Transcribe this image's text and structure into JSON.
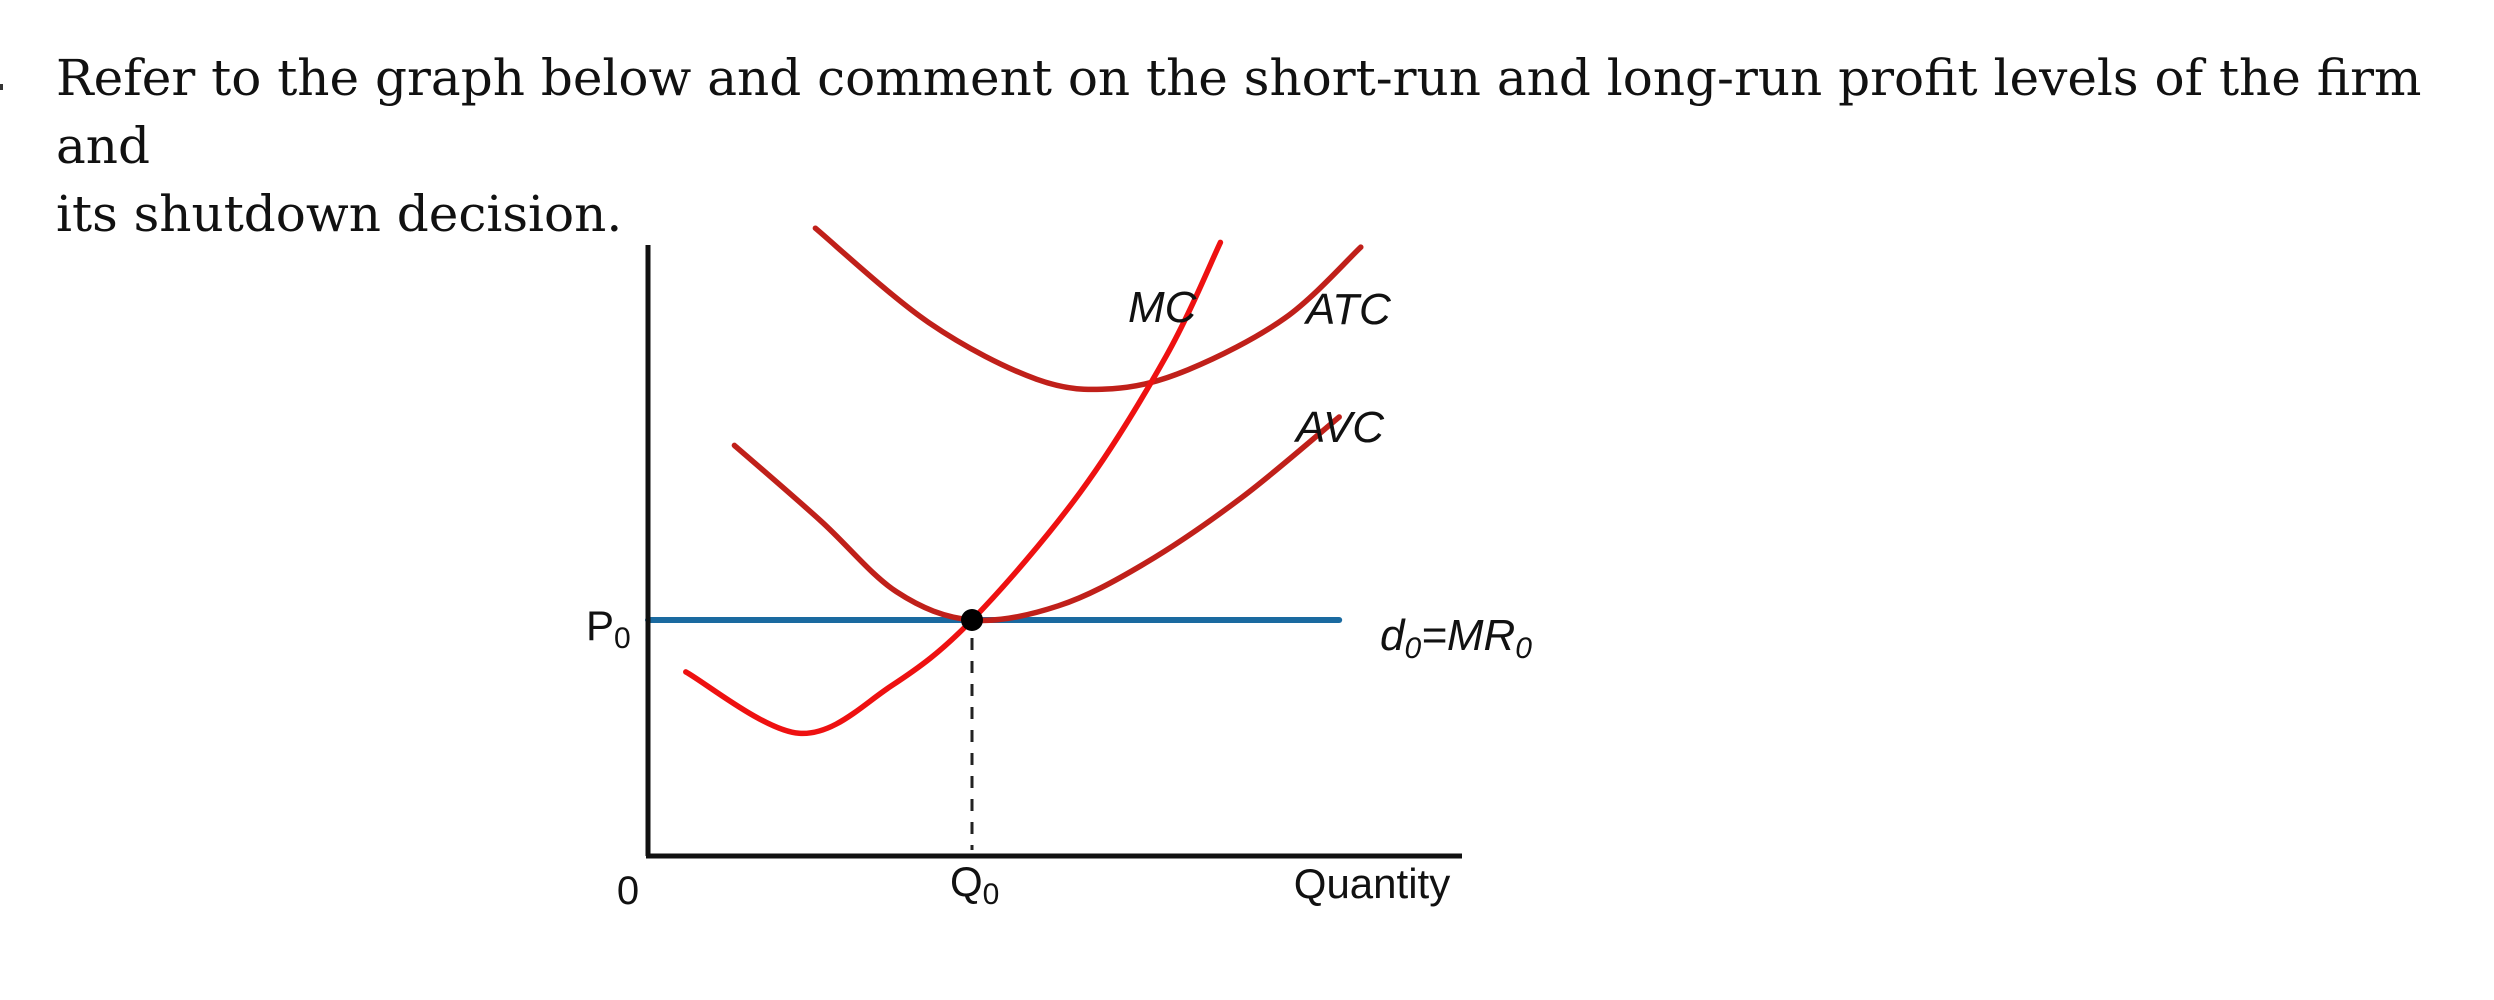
{
  "question": {
    "line1": "Refer to the graph below and comment on the short-run and long-run profit levels of the firm and",
    "line2": "its shutdown decision."
  },
  "chart_data": {
    "type": "line",
    "title": "",
    "xlabel": "Quantity",
    "ylabel": "",
    "origin_label": "0",
    "price_tick_label": "P0",
    "quantity_tick_label": "Q0",
    "grid": false,
    "equilibrium": {
      "q": 3,
      "p": 5
    },
    "series": [
      {
        "name": "MC",
        "color": "#ee1111",
        "points": [
          [
            0.35,
            3.9
          ],
          [
            1.4,
            2.6
          ],
          [
            2.25,
            3.6
          ],
          [
            3,
            5
          ],
          [
            4.0,
            7.7
          ],
          [
            4.8,
            10.6
          ],
          [
            5.3,
            13.0
          ]
        ]
      },
      {
        "name": "ATC",
        "color": "#c0201a",
        "points": [
          [
            1.55,
            13.3
          ],
          [
            2.6,
            11.3
          ],
          [
            3.6,
            10.1
          ],
          [
            4.3,
            9.9
          ],
          [
            5.0,
            10.3
          ],
          [
            5.9,
            11.4
          ],
          [
            6.6,
            12.9
          ]
        ]
      },
      {
        "name": "AVC",
        "color": "#c0201a",
        "points": [
          [
            0.8,
            8.7
          ],
          [
            1.6,
            7.1
          ],
          [
            2.3,
            5.6
          ],
          [
            3.0,
            5.0
          ],
          [
            3.8,
            5.3
          ],
          [
            4.6,
            6.2
          ],
          [
            5.5,
            7.6
          ],
          [
            6.4,
            9.3
          ]
        ]
      },
      {
        "name": "d0=MR0",
        "color": "#1a6aa0",
        "points": [
          [
            0,
            5
          ],
          [
            6.4,
            5
          ]
        ]
      }
    ],
    "series_labels": {
      "MC": {
        "main": "MC",
        "sub": ""
      },
      "ATC": {
        "main": "ATC",
        "sub": ""
      },
      "AVC": {
        "main": "AVC",
        "sub": ""
      },
      "d0=MR0": {
        "main": "d",
        "sub": "0",
        "main2": "=MR",
        "sub2": "0"
      }
    }
  }
}
